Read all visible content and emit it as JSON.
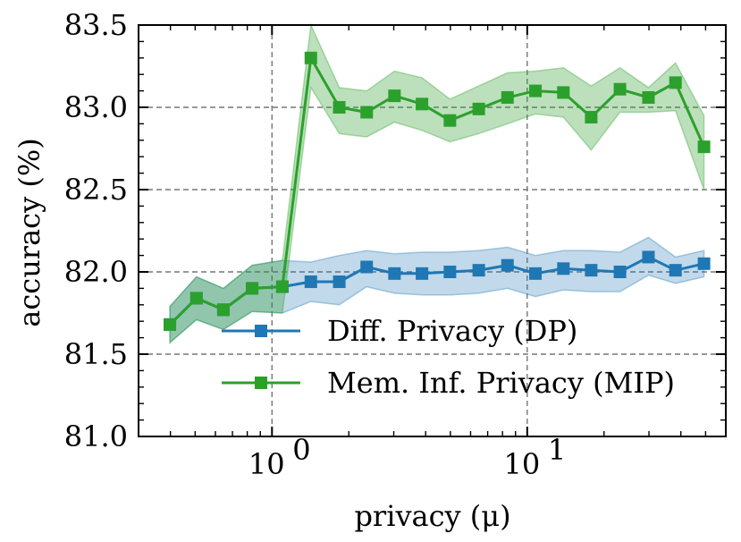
{
  "chart_data": {
    "type": "line",
    "xscale": "log",
    "xlabel": "privacy (μ)",
    "ylabel": "accuracy (%)",
    "xlim": [
      0.3,
      60
    ],
    "ylim": [
      81.0,
      83.5
    ],
    "yticks": [
      81.0,
      81.5,
      82.0,
      82.5,
      83.0,
      83.5
    ],
    "ytick_labels": [
      "81.0",
      "81.5",
      "82.0",
      "82.5",
      "83.0",
      "83.5"
    ],
    "xticks": [
      1,
      10
    ],
    "xtick_labels": [
      {
        "base": "10",
        "exp": "0"
      },
      {
        "base": "10",
        "exp": "1"
      }
    ],
    "grid": true,
    "legend_position": "bottom-right",
    "x": [
      0.398,
      0.506,
      0.645,
      0.836,
      1.098,
      1.42,
      1.835,
      2.35,
      3.02,
      3.87,
      4.98,
      6.46,
      8.37,
      10.77,
      13.86,
      17.81,
      23.09,
      29.86,
      38.11,
      49.29
    ],
    "series": [
      {
        "name": "Diff. Privacy (DP)",
        "color": "#1f77b4",
        "values": [
          81.68,
          81.84,
          81.77,
          81.9,
          81.91,
          81.94,
          81.94,
          82.03,
          81.99,
          81.99,
          82.0,
          82.01,
          82.04,
          81.99,
          82.02,
          82.01,
          82.0,
          82.09,
          82.01,
          82.05
        ],
        "lower": [
          81.57,
          81.71,
          81.65,
          81.76,
          81.75,
          81.82,
          81.8,
          81.91,
          81.87,
          81.86,
          81.86,
          81.87,
          81.9,
          81.85,
          81.89,
          81.88,
          81.88,
          81.98,
          81.93,
          81.97
        ],
        "upper": [
          81.79,
          81.97,
          81.9,
          82.04,
          82.07,
          82.06,
          82.1,
          82.13,
          82.11,
          82.12,
          82.12,
          82.13,
          82.15,
          82.1,
          82.13,
          82.13,
          82.12,
          82.21,
          82.09,
          82.13
        ]
      },
      {
        "name": "Mem. Inf. Privacy (MIP)",
        "color": "#2ca02c",
        "values": [
          81.68,
          81.84,
          81.77,
          81.9,
          81.91,
          83.3,
          83.0,
          82.97,
          83.07,
          83.02,
          82.92,
          82.99,
          83.06,
          83.1,
          83.09,
          82.94,
          83.11,
          83.06,
          83.15,
          82.76
        ],
        "lower": [
          81.57,
          81.71,
          81.65,
          81.76,
          81.75,
          83.12,
          82.84,
          82.82,
          82.91,
          82.86,
          82.79,
          82.84,
          82.9,
          82.96,
          82.94,
          82.74,
          82.97,
          82.97,
          82.98,
          82.5
        ],
        "upper": [
          81.79,
          81.97,
          81.9,
          82.04,
          82.07,
          83.5,
          83.12,
          83.1,
          83.22,
          83.18,
          83.05,
          83.13,
          83.21,
          83.22,
          83.24,
          83.13,
          83.24,
          83.12,
          83.27,
          82.95
        ]
      }
    ]
  }
}
